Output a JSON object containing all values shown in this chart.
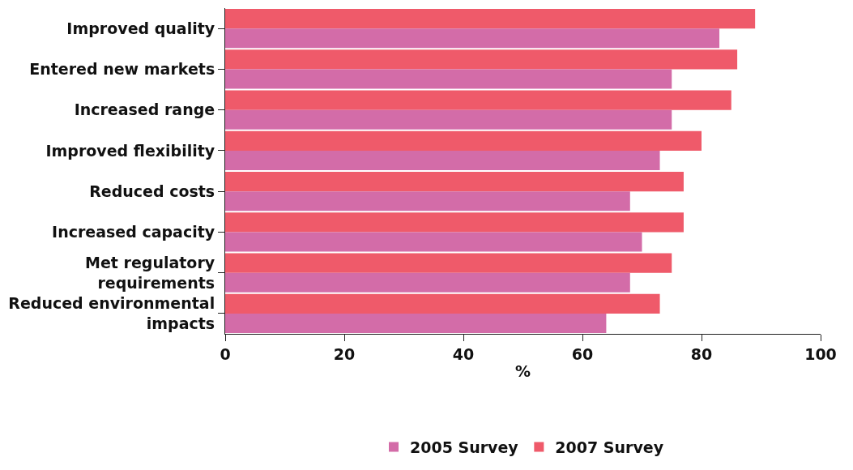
{
  "chart_data": {
    "type": "bar",
    "orientation": "horizontal",
    "xlabel": "%",
    "categories": [
      "Improved quality",
      "Entered new markets",
      "Increased range",
      "Improved flexibility",
      "Reduced costs",
      "Increased capacity",
      "Met regulatory requirements",
      "Reduced environmental impacts"
    ],
    "series": [
      {
        "name": "2007 Survey",
        "color": "#ef5a6a",
        "values": [
          89,
          86,
          85,
          80,
          77,
          77,
          75,
          73
        ]
      },
      {
        "name": "2005 Survey",
        "color": "#d36ca8",
        "values": [
          83,
          75,
          75,
          73,
          68,
          70,
          68,
          64
        ]
      }
    ],
    "xlim": [
      0,
      100
    ],
    "xticks": [
      0,
      20,
      40,
      60,
      80,
      100
    ],
    "grid": false,
    "legend": "bottom"
  }
}
